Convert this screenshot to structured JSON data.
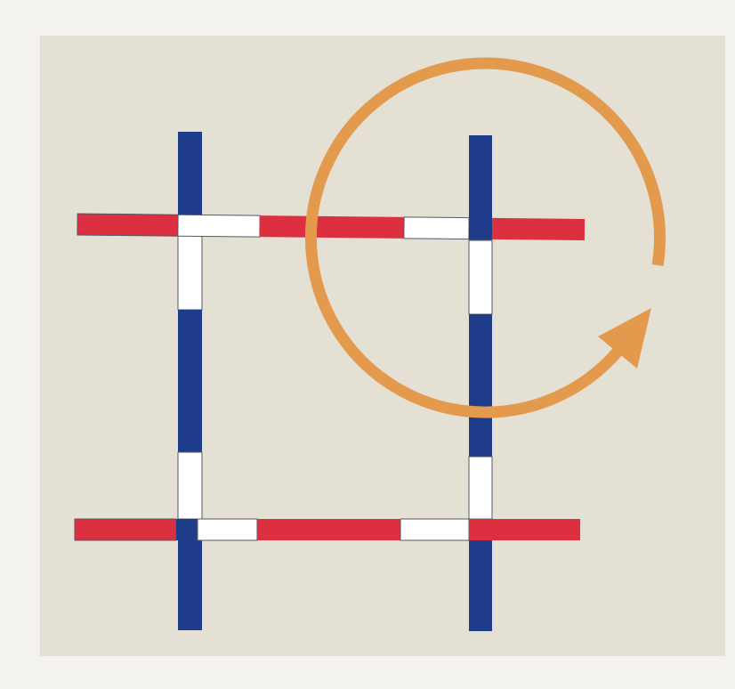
{
  "diagram": {
    "colors": {
      "page_background": "#f3f2ef",
      "panel_background": "#e4e0d3",
      "vertical_bar": "#1e3c8a",
      "horizontal_bar": "#dc2f3f",
      "overlap_segment": "#ffffff",
      "segment_outline": "#555a66",
      "arrow": "#e49a4c"
    },
    "elements": {
      "vertical_bars": 2,
      "horizontal_bars": 2,
      "arrow_shape": "circular-clockwise-arrow"
    }
  }
}
